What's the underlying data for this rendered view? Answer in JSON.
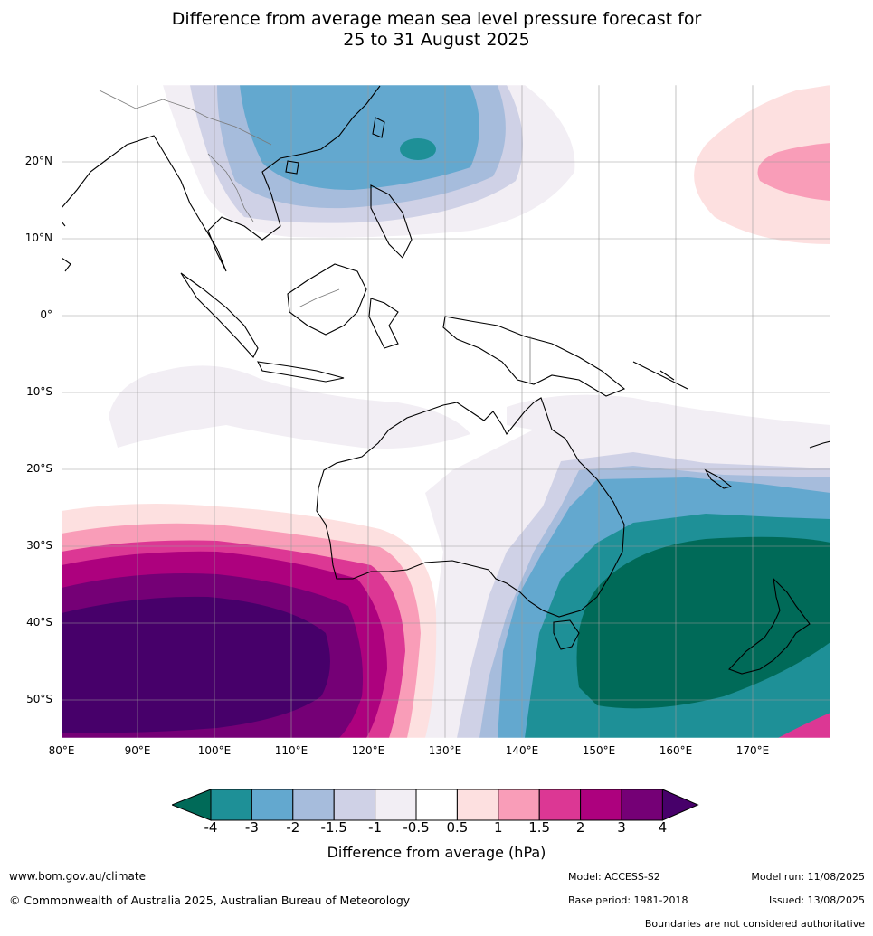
{
  "title_line1": "Difference from average mean sea level pressure forecast for",
  "title_line2": "25 to 31 August 2025",
  "map": {
    "lat_labels": [
      "20°N",
      "10°N",
      "0°",
      "10°S",
      "20°S",
      "30°S",
      "40°S",
      "50°S"
    ],
    "lon_labels": [
      "80°E",
      "90°E",
      "100°E",
      "110°E",
      "120°E",
      "130°E",
      "140°E",
      "150°E",
      "160°E",
      "170°E"
    ]
  },
  "colorbar": {
    "ticks": [
      "-4",
      "-3",
      "-2",
      "-1.5",
      "-1",
      "-0.5",
      "0.5",
      "1",
      "1.5",
      "2",
      "3",
      "4"
    ],
    "colors": [
      "#006a58",
      "#1e9097",
      "#63a8cf",
      "#a6bcdc",
      "#cfd1e6",
      "#f2eef4",
      "#ffffff",
      "#fde0e0",
      "#f99db8",
      "#dc3794",
      "#ad017e",
      "#750076",
      "#47006a"
    ],
    "label": "Difference from average (hPa)"
  },
  "footer": {
    "website": "www.bom.gov.au/climate",
    "copyright": "© Commonwealth of Australia 2025, Australian Bureau of Meteorology",
    "model": "Model: ACCESS-S2",
    "base_period": "Base period: 1981-2018",
    "model_run": "Model run: 11/08/2025",
    "issued": "Issued: 13/08/2025",
    "disclaimer": "Boundaries are not considered authoritative"
  }
}
